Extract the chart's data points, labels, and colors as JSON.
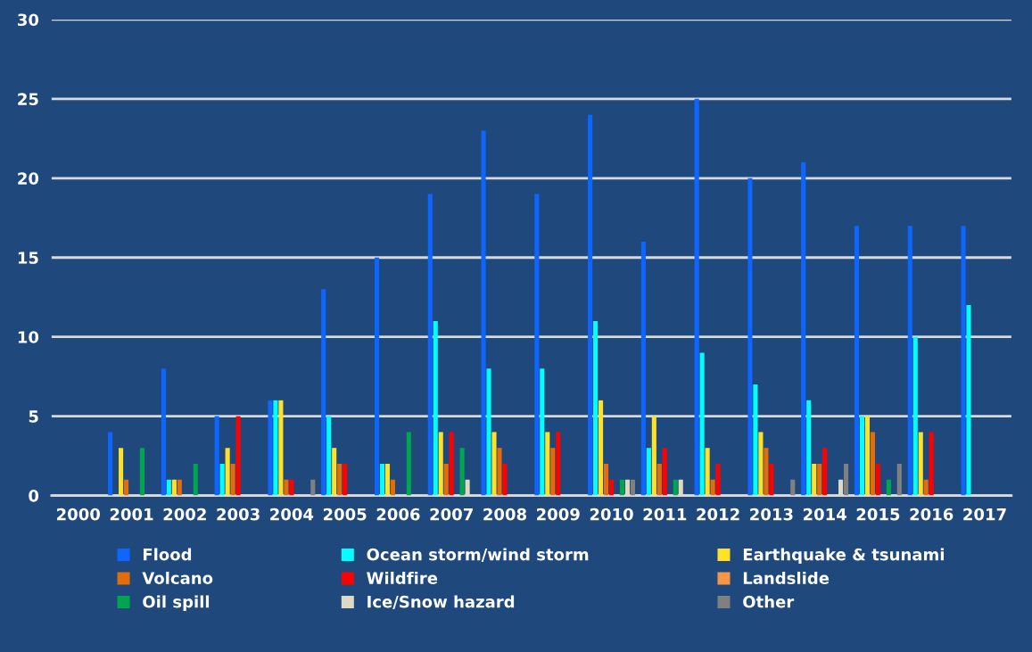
{
  "chart_data": {
    "type": "bar",
    "categories": [
      "2000",
      "2001",
      "2002",
      "2003",
      "2004",
      "2005",
      "2006",
      "2007",
      "2008",
      "2009",
      "2010",
      "2011",
      "2012",
      "2013",
      "2014",
      "2015",
      "2016",
      "2017"
    ],
    "series": [
      {
        "name": "Flood",
        "color": "#0f66ff",
        "values": [
          0,
          4,
          8,
          5,
          6,
          13,
          15,
          19,
          23,
          19,
          24,
          16,
          25,
          20,
          21,
          17,
          17,
          17
        ]
      },
      {
        "name": "Ocean storm/wind storm",
        "color": "#00ffff",
        "values": [
          0,
          0,
          1,
          2,
          6,
          5,
          2,
          11,
          8,
          8,
          11,
          3,
          9,
          7,
          6,
          5,
          10,
          12
        ]
      },
      {
        "name": "Earthquake & tsunami",
        "color": "#ffe12a",
        "values": [
          0,
          3,
          1,
          3,
          6,
          3,
          2,
          4,
          4,
          4,
          6,
          5,
          3,
          4,
          2,
          5,
          4,
          null
        ]
      },
      {
        "name": "Volcano",
        "color": "#e46c0a",
        "values": [
          0,
          1,
          1,
          2,
          1,
          2,
          1,
          2,
          3,
          3,
          2,
          2,
          1,
          3,
          2,
          4,
          1,
          null
        ]
      },
      {
        "name": "Wildfire",
        "color": "#ff0000",
        "values": [
          0,
          0,
          0,
          5,
          1,
          2,
          0,
          4,
          2,
          4,
          1,
          3,
          2,
          2,
          3,
          2,
          4,
          null
        ]
      },
      {
        "name": "Landslide",
        "color": "#f79646",
        "values": [
          0,
          0,
          0,
          0,
          0,
          0,
          0,
          0,
          0,
          0,
          0,
          0,
          0,
          0,
          0,
          0,
          0,
          null
        ]
      },
      {
        "name": "Oil spill",
        "color": "#00a550",
        "values": [
          0,
          3,
          2,
          0,
          0,
          0,
          4,
          3,
          0,
          0,
          1,
          1,
          0,
          0,
          0,
          1,
          0,
          null
        ]
      },
      {
        "name": "Ice/Snow hazard",
        "color": "#ddd9c3",
        "values": [
          0,
          0,
          0,
          0,
          0,
          0,
          0,
          1,
          0,
          0,
          1,
          1,
          0,
          0,
          1,
          0,
          0,
          null
        ]
      },
      {
        "name": "Other",
        "color": "#808080",
        "values": [
          0,
          0,
          0,
          0,
          1,
          0,
          0,
          0,
          0,
          0,
          1,
          0,
          0,
          1,
          2,
          2,
          0,
          null
        ]
      }
    ],
    "ylim": [
      0,
      30
    ],
    "yticks": [
      0,
      5,
      10,
      15,
      20,
      25,
      30
    ],
    "grid": "y",
    "legend": "bottom"
  }
}
